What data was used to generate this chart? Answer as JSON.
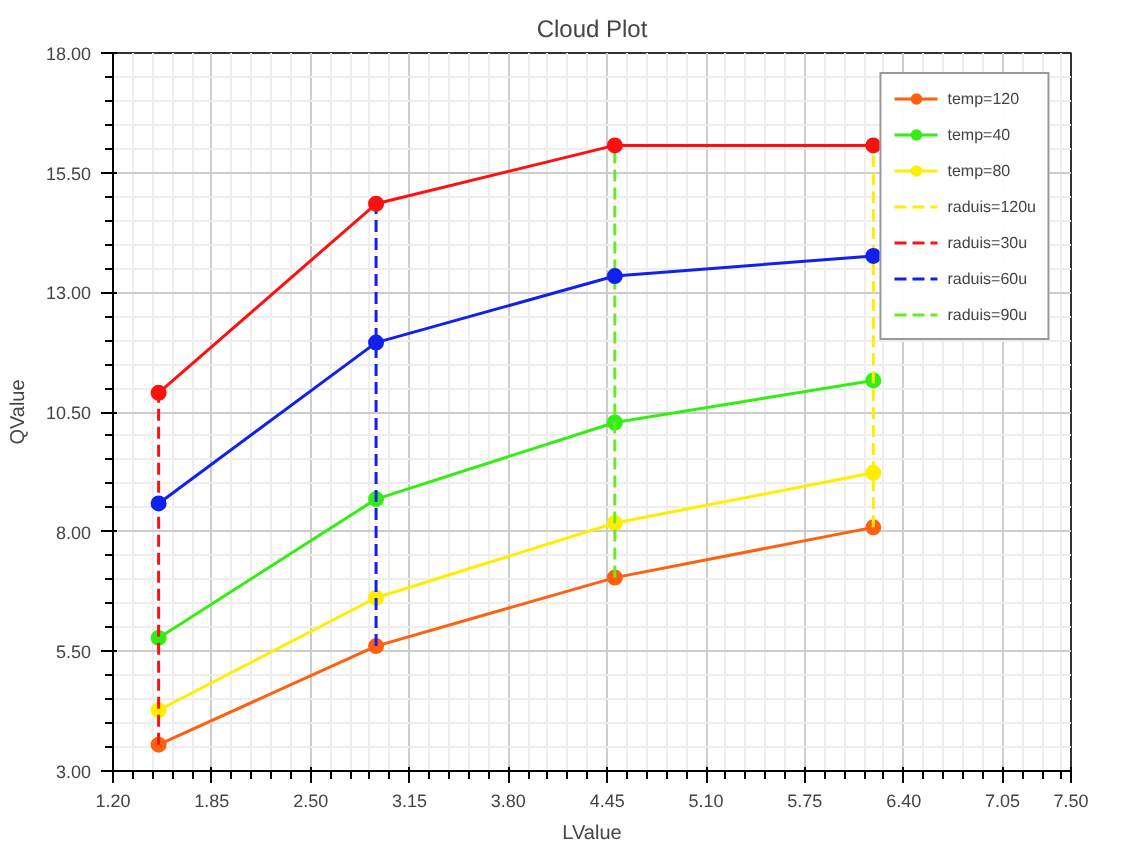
{
  "chart_data": {
    "type": "line",
    "title": "Cloud Plot",
    "xlabel": "LValue",
    "ylabel": "QValue",
    "xlim": [
      1.2,
      7.5
    ],
    "ylim": [
      3,
      18
    ],
    "xticks": [
      {
        "value": 1.2,
        "label": "1.20"
      },
      {
        "value": 1.85,
        "label": "1.85"
      },
      {
        "value": 2.5,
        "label": "2.50"
      },
      {
        "value": 3.15,
        "label": "3.15"
      },
      {
        "value": 3.8,
        "label": "3.80"
      },
      {
        "value": 4.45,
        "label": "4.45"
      },
      {
        "value": 5.1,
        "label": "5.10"
      },
      {
        "value": 5.75,
        "label": "5.75"
      },
      {
        "value": 6.4,
        "label": "6.40"
      },
      {
        "value": 7.05,
        "label": "7.05"
      },
      {
        "value": 7.5,
        "label": "7.50"
      }
    ],
    "yticks": [
      {
        "value": 3,
        "label": "3.00"
      },
      {
        "value": 5.5,
        "label": "5.50"
      },
      {
        "value": 8,
        "label": "8.00"
      },
      {
        "value": 10.5,
        "label": "10.50"
      },
      {
        "value": 13,
        "label": "13.00"
      },
      {
        "value": 15.5,
        "label": "15.50"
      },
      {
        "value": 18,
        "label": "18.00"
      }
    ],
    "grid": true,
    "legend": "top right",
    "series": [
      {
        "name": "temp=120",
        "color": "#ff6010",
        "marker": "circle",
        "line_style": "solid",
        "x": [
          1.5,
          2.93,
          4.5,
          6.2
        ],
        "values": [
          3.55,
          5.61,
          7.04,
          8.09
        ]
      },
      {
        "name": "temp=40",
        "color": "#33ee11",
        "marker": "circle",
        "line_style": "solid",
        "x": [
          1.5,
          2.93,
          4.5,
          6.2
        ],
        "values": [
          5.78,
          8.68,
          10.28,
          11.16
        ]
      },
      {
        "name": "temp=80",
        "color": "#ffee00",
        "marker": "circle",
        "line_style": "solid",
        "x": [
          1.5,
          2.93,
          4.5,
          6.2
        ],
        "values": [
          4.27,
          6.62,
          8.18,
          9.23
        ]
      },
      {
        "name": "raduis=120u",
        "color": "#ffee00",
        "marker": "none",
        "line_style": "dashed",
        "x": [
          6.2,
          6.2,
          6.2,
          6.2,
          6.2
        ],
        "values": [
          8.09,
          9.23,
          11.16,
          13.76,
          16.07
        ]
      },
      {
        "name": "raduis=30u",
        "color": "#ff1010",
        "marker": "none",
        "line_style": "dashed",
        "x": [
          1.5,
          1.5,
          1.5,
          1.5,
          1.5
        ],
        "values": [
          3.55,
          4.27,
          5.78,
          8.59,
          10.9
        ]
      },
      {
        "name": "raduis=60u",
        "color": "#1020ee",
        "marker": "none",
        "line_style": "dashed",
        "x": [
          2.93,
          2.93,
          2.93,
          2.93,
          2.93
        ],
        "values": [
          5.61,
          6.62,
          8.68,
          11.95,
          14.85
        ]
      },
      {
        "name": "raduis=90u",
        "color": "#66ee22",
        "marker": "none",
        "line_style": "dashed",
        "x": [
          4.5,
          4.5,
          4.5,
          4.5,
          4.5
        ],
        "values": [
          7.04,
          8.18,
          10.28,
          13.34,
          16.07
        ]
      },
      {
        "color": "#ff1010",
        "marker": "circle",
        "line_style": "solid",
        "x": [
          1.5,
          2.93,
          4.5,
          6.2
        ],
        "values": [
          10.9,
          14.85,
          16.07,
          16.07
        ]
      },
      {
        "color": "#1020ee",
        "marker": "circle",
        "line_style": "solid",
        "x": [
          1.5,
          2.93,
          4.5,
          6.2
        ],
        "values": [
          8.59,
          11.95,
          13.34,
          13.76
        ]
      }
    ]
  }
}
